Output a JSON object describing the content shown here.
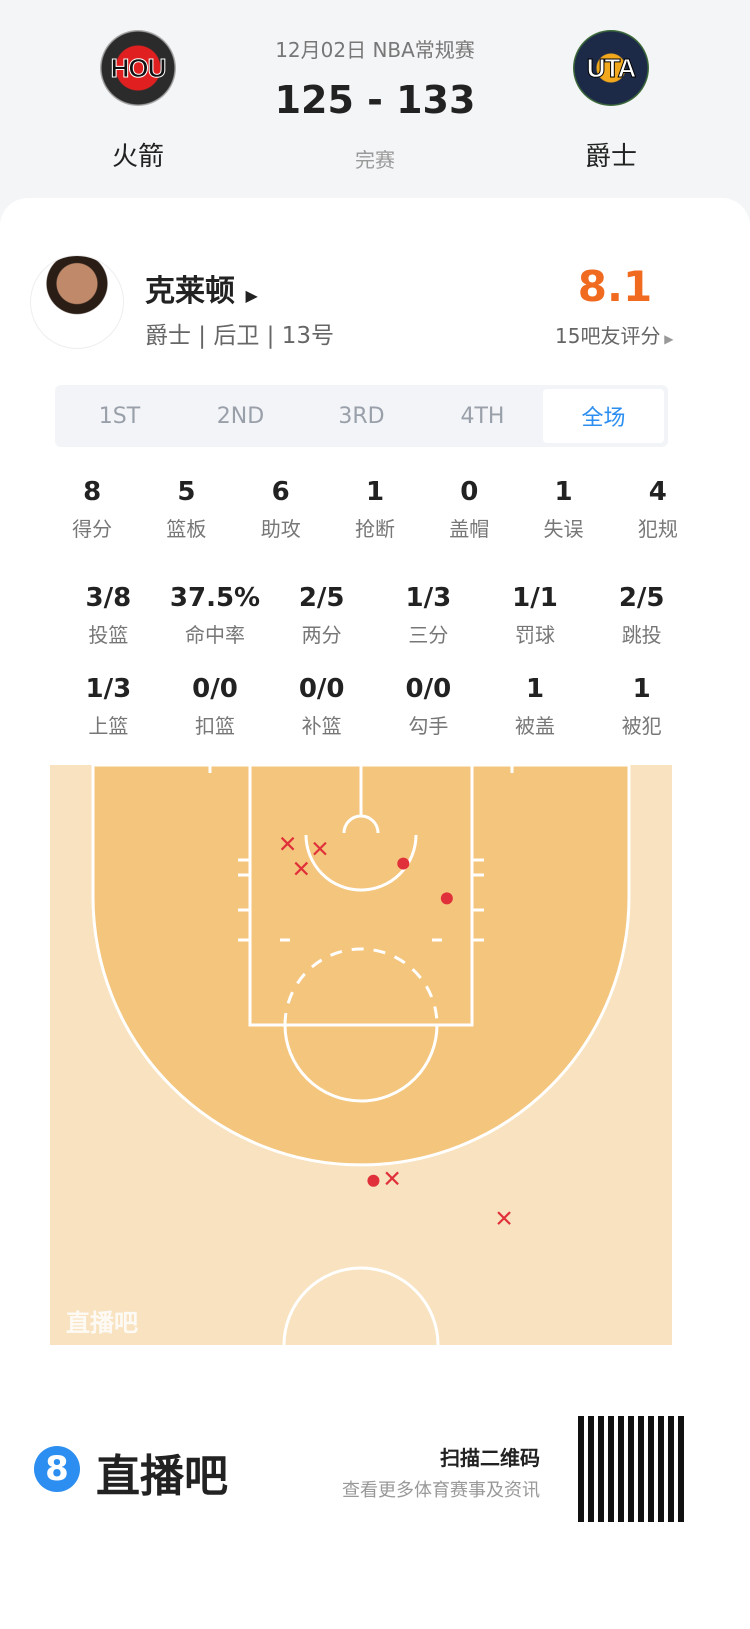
{
  "match": {
    "date_league": "12月02日 NBA常规赛",
    "score": "125 - 133",
    "status": "完赛",
    "home": {
      "abbr": "HOU",
      "name": "火箭"
    },
    "away": {
      "abbr": "UTA",
      "name": "爵士"
    }
  },
  "player": {
    "name": "克莱顿",
    "info": "爵士 | 后卫 | 13号",
    "rating": "8.1",
    "rating_label": "15吧友评分"
  },
  "tabs": [
    "1ST",
    "2ND",
    "3RD",
    "4TH",
    "全场"
  ],
  "active_tab": "全场",
  "stats_rows": [
    [
      {
        "v": "8",
        "l": "得分"
      },
      {
        "v": "5",
        "l": "篮板"
      },
      {
        "v": "6",
        "l": "助攻"
      },
      {
        "v": "1",
        "l": "抢断"
      },
      {
        "v": "0",
        "l": "盖帽"
      },
      {
        "v": "1",
        "l": "失误"
      },
      {
        "v": "4",
        "l": "犯规"
      }
    ],
    [
      {
        "v": "3/8",
        "l": "投篮"
      },
      {
        "v": "37.5%",
        "l": "命中率"
      },
      {
        "v": "2/5",
        "l": "两分"
      },
      {
        "v": "1/3",
        "l": "三分"
      },
      {
        "v": "1/1",
        "l": "罚球"
      },
      {
        "v": "2/5",
        "l": "跳投"
      }
    ],
    [
      {
        "v": "1/3",
        "l": "上篮"
      },
      {
        "v": "0/0",
        "l": "扣篮"
      },
      {
        "v": "0/0",
        "l": "补篮"
      },
      {
        "v": "0/0",
        "l": "勾手"
      },
      {
        "v": "1",
        "l": "被盖"
      },
      {
        "v": "1",
        "l": "被犯"
      }
    ]
  ],
  "shot_chart": {
    "watermark": "直播吧",
    "units": "feet from basket",
    "colors": {
      "make": "#e0313b",
      "miss": "#e0313b",
      "inside": "#f4c57c",
      "outside": "#f8e2bf"
    },
    "shots": [
      {
        "x": -5.9,
        "y": 1.5,
        "made": false
      },
      {
        "x": -3.3,
        "y": 1.9,
        "made": false
      },
      {
        "x": -4.8,
        "y": 3.5,
        "made": false
      },
      {
        "x": 2.5,
        "y": 28.4,
        "made": false
      },
      {
        "x": 11.5,
        "y": 31.6,
        "made": false
      },
      {
        "x": 3.4,
        "y": 3.1,
        "made": true
      },
      {
        "x": 6.9,
        "y": 5.9,
        "made": true
      },
      {
        "x": 1.0,
        "y": 28.6,
        "made": true
      }
    ]
  },
  "footer": {
    "brand": "直播吧",
    "brand_icon": "8",
    "scan": "扫描二维码",
    "desc": "查看更多体育赛事及资讯"
  },
  "accent": "#2b8ef0",
  "rating_color": "#f06a1f"
}
